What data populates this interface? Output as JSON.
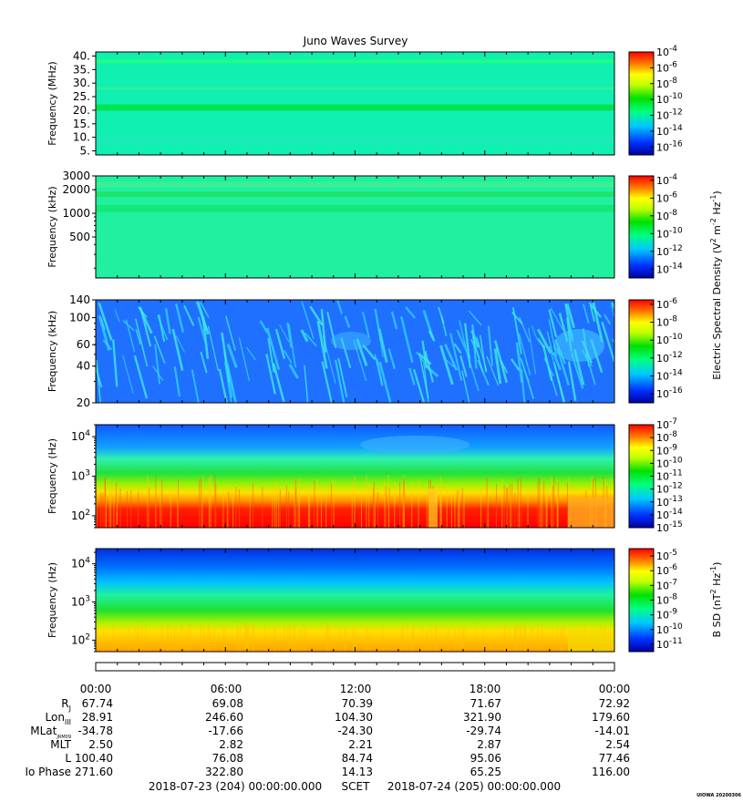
{
  "title": "Juno Waves Survey",
  "panels": [
    {
      "ylabel": "Frequency (MHz)",
      "scale": "linear",
      "ylim": [
        3.5,
        41.5
      ],
      "ticks": [
        {
          "v": 40,
          "t": "40."
        },
        {
          "v": 35,
          "t": "35."
        },
        {
          "v": 30,
          "t": "30."
        },
        {
          "v": 25,
          "t": "25."
        },
        {
          "v": 20,
          "t": "20."
        },
        {
          "v": 15,
          "t": "15."
        },
        {
          "v": 10,
          "t": "10."
        },
        {
          "v": 5,
          "t": "5."
        }
      ],
      "colorbar": {
        "labels": [
          "-4",
          "-6",
          "-8",
          "-10",
          "-12",
          "-14",
          "-16"
        ],
        "range": [
          -17,
          -4
        ]
      },
      "bands": [
        {
          "f": 21,
          "w": 0.06,
          "color": "#00e040"
        },
        {
          "f": 38,
          "w": 0.04,
          "color": "#20ff80"
        },
        {
          "f": 28,
          "w": 0.03,
          "color": "#30f0a0"
        },
        {
          "f": 9,
          "w": 0.05,
          "color": "#20e8c0"
        }
      ],
      "base": "#10f0b0"
    },
    {
      "ylabel": "Frequency (kHz)",
      "scale": "log",
      "ylim": [
        150,
        3000
      ],
      "ticks": [
        {
          "v": 3000,
          "t": "3000"
        },
        {
          "v": 2000,
          "t": "2000"
        },
        {
          "v": 1000,
          "t": "1000"
        },
        {
          "v": 500,
          "t": "500"
        }
      ],
      "colorbar": {
        "labels": [
          "-4",
          "-6",
          "-8",
          "-10",
          "-12",
          "-14"
        ],
        "range": [
          -15,
          -3.5
        ]
      },
      "bands": [
        {
          "f": 1750,
          "w": 0.05,
          "color": "#20e060"
        },
        {
          "f": 1150,
          "w": 0.07,
          "color": "#10e870"
        },
        {
          "f": 2300,
          "w": 0.05,
          "color": "#40f090"
        }
      ],
      "base": "#20f0a0"
    },
    {
      "ylabel": "Frequency (kHz)",
      "scale": "log",
      "ylim": [
        20,
        140
      ],
      "ticks": [
        {
          "v": 140,
          "t": "140"
        },
        {
          "v": 100,
          "t": "100"
        },
        {
          "v": 60,
          "t": "60"
        },
        {
          "v": 40,
          "t": "40"
        },
        {
          "v": 20,
          "t": "20"
        }
      ],
      "colorbar": {
        "labels": [
          "-6",
          "-8",
          "-10",
          "-12",
          "-14",
          "-16"
        ],
        "range": [
          -17,
          -5.5
        ]
      },
      "bands": [],
      "base": "#2070ff"
    },
    {
      "ylabel": "Frequency (Hz)",
      "scale": "log",
      "ylim": [
        50,
        20000
      ],
      "ticks": [
        {
          "v": 10000,
          "t": "10",
          "sup": "4"
        },
        {
          "v": 1000,
          "t": "10",
          "sup": "3"
        },
        {
          "v": 100,
          "t": "10",
          "sup": "2"
        }
      ],
      "colorbar": {
        "labels": [
          "-7",
          "-8",
          "-9",
          "-10",
          "-11",
          "-12",
          "-13",
          "-14",
          "-15"
        ],
        "range": [
          -15,
          -7
        ]
      },
      "bands": [],
      "base": "#1080ff"
    },
    {
      "ylabel": "Frequency (Hz)",
      "scale": "log",
      "ylim": [
        50,
        25000
      ],
      "ticks": [
        {
          "v": 10000,
          "t": "10",
          "sup": "4"
        },
        {
          "v": 1000,
          "t": "10",
          "sup": "3"
        },
        {
          "v": 100,
          "t": "10",
          "sup": "2"
        }
      ],
      "colorbar": {
        "labels": [
          "-5",
          "-6",
          "-7",
          "-8",
          "-9",
          "-10",
          "-11"
        ],
        "range": [
          -11.5,
          -4.5
        ]
      },
      "bands": [],
      "base": "#0060ff"
    }
  ],
  "colorbar_titles": {
    "electric": "Electric Spectral Density (V",
    "electric_sup1": "2",
    "electric_mid": " m",
    "electric_sup2": "-2",
    "electric_mid2": " Hz",
    "electric_sup3": "-1",
    "electric_end": ")",
    "magnetic": "B SD (nT",
    "magnetic_sup1": "2",
    "magnetic_mid": " Hz",
    "magnetic_sup2": "-1",
    "magnetic_end": ")"
  },
  "tick_base": "10",
  "time_ticks": [
    "00:00",
    "06:00",
    "12:00",
    "18:00",
    "00:00"
  ],
  "ephemeris": [
    {
      "label": "R",
      "sub": "J",
      "values": [
        "67.74",
        "69.08",
        "70.39",
        "71.67",
        "72.92"
      ]
    },
    {
      "label": "Lon",
      "sub": "III",
      "values": [
        "28.91",
        "246.60",
        "104.30",
        "321.90",
        "179.60"
      ]
    },
    {
      "label": "MLat",
      "sub": "JRM09",
      "values": [
        "-34.78",
        "-17.66",
        "-24.30",
        "-29.74",
        "-14.01"
      ]
    },
    {
      "label": "MLT",
      "sub": "",
      "values": [
        "2.50",
        "2.82",
        "2.21",
        "2.87",
        "2.54"
      ]
    },
    {
      "label": "L",
      "sub": "",
      "values": [
        "100.40",
        "76.08",
        "84.74",
        "95.06",
        "77.46"
      ]
    },
    {
      "label": "Io Phase",
      "sub": "",
      "values": [
        "271.60",
        "322.80",
        "14.13",
        "65.25",
        "116.00"
      ]
    }
  ],
  "footer": {
    "start": "2018-07-23 (204) 00:00:00.000",
    "scet": "SCET",
    "end": "2018-07-24 (205) 00:00:00.000",
    "stamp": "UIOWA 20200306"
  },
  "chart_data": {
    "type": "heatmap",
    "title": "Juno Waves Survey",
    "x_range": [
      "2018-07-23 00:00",
      "2018-07-24 00:00"
    ],
    "x_ticks": [
      "00:00",
      "06:00",
      "12:00",
      "18:00",
      "00:00"
    ],
    "panels": [
      {
        "ylabel": "Frequency (MHz)",
        "ylim": [
          3.5,
          41.5
        ],
        "color_exponent_range": [
          -16,
          -4
        ],
        "colorbar_label": "Electric Spectral Density"
      },
      {
        "ylabel": "Frequency (kHz)",
        "ylim": [
          150,
          3000
        ],
        "color_exponent_range": [
          -14,
          -4
        ],
        "colorbar_label": "Electric Spectral Density"
      },
      {
        "ylabel": "Frequency (kHz)",
        "ylim": [
          20,
          140
        ],
        "color_exponent_range": [
          -16,
          -6
        ],
        "colorbar_label": "Electric Spectral Density"
      },
      {
        "ylabel": "Frequency (Hz)",
        "ylim": [
          50,
          20000
        ],
        "color_exponent_range": [
          -15,
          -7
        ],
        "colorbar_label": "Electric Spectral Density"
      },
      {
        "ylabel": "Frequency (Hz)",
        "ylim": [
          50,
          25000
        ],
        "color_exponent_range": [
          -11,
          -5
        ],
        "colorbar_label": "B SD"
      }
    ]
  }
}
